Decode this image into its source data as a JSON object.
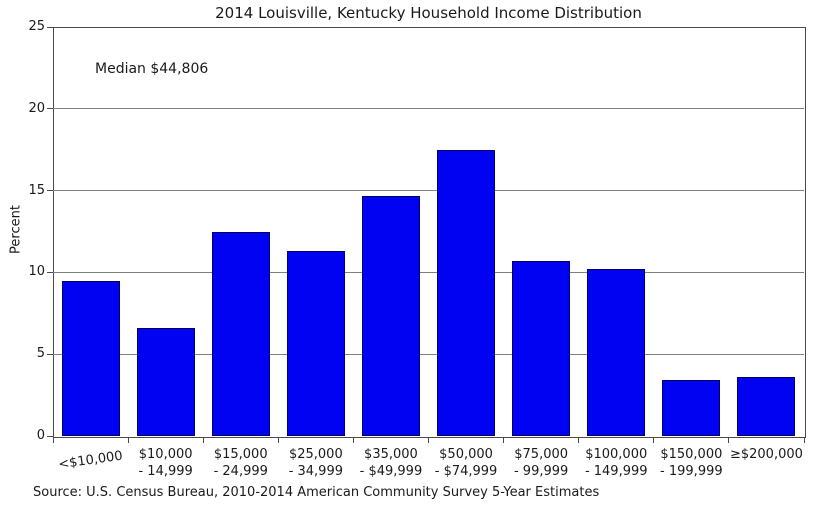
{
  "chart_data": {
    "type": "bar",
    "title": "2014 Louisville, Kentucky Household Income Distribution",
    "ylabel": "Percent",
    "xlabel": "",
    "annotation": "Median $44,806",
    "source": "Source: U.S. Census Bureau, 2010-2014 American Community Survey 5-Year Estimates",
    "ylim": [
      0,
      25
    ],
    "yticks": [
      0,
      5,
      10,
      15,
      20,
      25
    ],
    "grid": "horizontal",
    "legend": "none",
    "categories": [
      [
        "<$10,000"
      ],
      [
        "$10,000",
        "- 14,999"
      ],
      [
        "$15,000",
        "- 24,999"
      ],
      [
        "$25,000",
        "- 34,999"
      ],
      [
        "$35,000",
        "- $49,999"
      ],
      [
        "$50,000",
        "- $74,999"
      ],
      [
        "$75,000",
        "- 99,999"
      ],
      [
        "$100,000",
        "- 149,999"
      ],
      [
        "$150,000",
        "- 199,999"
      ],
      [
        "≥$200,000"
      ]
    ],
    "values": [
      9.5,
      6.6,
      12.5,
      11.3,
      14.7,
      17.5,
      10.7,
      10.2,
      3.4,
      3.6
    ],
    "colors": {
      "bar_fill": "#0202f2",
      "bar_edge": "#000066",
      "gridline": "#7f7f7f",
      "axis_frame": "#4a4a4a",
      "text": "#1a1a1a"
    }
  }
}
